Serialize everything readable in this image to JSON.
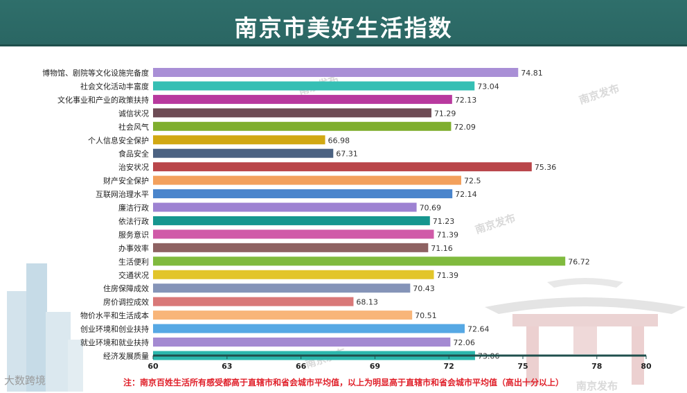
{
  "title": "南京市美好生活指数",
  "note": "注：南京百姓生活所有感受都高于直辖市和省会城市平均值，以上为明显高于直辖市和省会城市平均值（高出十分以上）",
  "watermark": "南京发布",
  "corner_logo": "大数跨境",
  "colors": {
    "banner": "#2f6f6b",
    "axis": "#1f4f4c",
    "note": "#e0202a"
  },
  "chart_data": {
    "type": "bar",
    "orientation": "horizontal",
    "xlim": [
      60,
      80
    ],
    "xticks": [
      60,
      63,
      66,
      69,
      72,
      75,
      78,
      80
    ],
    "grid": false,
    "categories": [
      "博物馆、剧院等文化设施完备度",
      "社会文化活动丰富度",
      "文化事业和产业的政策扶持",
      "诚信状况",
      "社会风气",
      "个人信息安全保护",
      "食品安全",
      "治安状况",
      "财产安全保护",
      "互联网治理水平",
      "廉洁行政",
      "依法行政",
      "服务意识",
      "办事效率",
      "生活便利",
      "交通状况",
      "住房保障成效",
      "房价调控成效",
      "物价水平和生活成本",
      "创业环境和创业扶持",
      "就业环境和就业扶持",
      "经济发展质量"
    ],
    "values": [
      74.81,
      73.04,
      72.13,
      71.29,
      72.09,
      66.98,
      67.31,
      75.36,
      72.5,
      72.14,
      70.69,
      71.23,
      71.39,
      71.16,
      76.72,
      71.39,
      70.43,
      68.13,
      70.51,
      72.64,
      72.06,
      73.06
    ],
    "value_labels": [
      "74.81",
      "73.04",
      "72.13",
      "71.29",
      "72.09",
      "66.98",
      "67.31",
      "75.36",
      "72.5",
      "72.14",
      "70.69",
      "71.23",
      "71.39",
      "71.16",
      "76.72",
      "71.39",
      "70.43",
      "68.13",
      "70.51",
      "72.64",
      "72.06",
      "73.06"
    ],
    "bar_colors": [
      "#a98fd6",
      "#35bfb4",
      "#b8399e",
      "#6e4b55",
      "#7fae2e",
      "#d1a813",
      "#4b6282",
      "#b9464a",
      "#f3a05c",
      "#4a85cc",
      "#9d82d2",
      "#17968f",
      "#d05aa8",
      "#8e6262",
      "#80ba3e",
      "#e2c52a",
      "#8594b8",
      "#d97878",
      "#f8b579",
      "#56a8e4",
      "#a48ad2",
      "#2cb7ad"
    ]
  }
}
